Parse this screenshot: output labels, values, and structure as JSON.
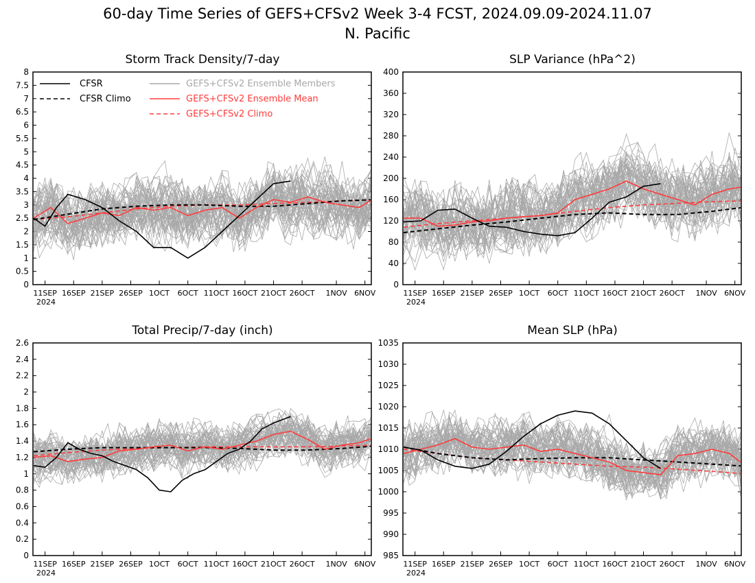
{
  "figure": {
    "title_line1": "60-day Time Series of GEFS+CFSv2 Week 3-4 FCST, 2024.09.09-2024.11.07",
    "title_line2": "N. Pacific",
    "date_ticks": [
      "11SEP",
      "16SEP",
      "21SEP",
      "26SEP",
      "1OCT",
      "6OCT",
      "11OCT",
      "16OCT",
      "21OCT",
      "26OCT",
      "1NOV",
      "6NOV"
    ],
    "year_label": "2024",
    "colors": {
      "cfsr": "#000000",
      "ensemble_members": "#a8a8a8",
      "ensemble_mean": "#ff3b3b",
      "gefs_climo": "#ff3b3b",
      "axes": "#000000"
    },
    "legend": {
      "cfsr": "CFSR",
      "cfsr_climo": "CFSR Climo",
      "members": "GEFS+CFSv2 Ensemble Members",
      "mean": "GEFS+CFSv2 Ensemble Mean",
      "gefs_climo": "GEFS+CFSv2 Climo"
    }
  },
  "chart_data": [
    {
      "type": "line",
      "title": "Storm Track Density/7-day",
      "x_dates": [
        "2024-09-09",
        "2024-11-07"
      ],
      "ylim": [
        0,
        8
      ],
      "y_ticks": [
        "0",
        "0.5",
        "1",
        "1.5",
        "2",
        "2.5",
        "3",
        "3.5",
        "4",
        "4.5",
        "5",
        "5.5",
        "6",
        "6.5",
        "7",
        "7.5",
        "8"
      ],
      "ensemble_spread": {
        "lower": 0.9,
        "upper": 4.3
      },
      "series": [
        {
          "name": "CFSR",
          "days": [
            0,
            2,
            4,
            6,
            9,
            12,
            15,
            18,
            21,
            24,
            27,
            30,
            33,
            36,
            39,
            42,
            45
          ],
          "values": [
            2.5,
            2.2,
            2.9,
            3.4,
            3.2,
            2.9,
            2.4,
            2.0,
            1.4,
            1.4,
            1.0,
            1.4,
            2.0,
            2.6,
            3.2,
            3.8,
            3.9
          ]
        },
        {
          "name": "CFSR Climo",
          "days": [
            0,
            6,
            12,
            18,
            24,
            30,
            36,
            42,
            48,
            54,
            60
          ],
          "values": [
            2.45,
            2.65,
            2.85,
            2.95,
            3.0,
            3.0,
            2.95,
            2.95,
            3.05,
            3.15,
            3.2
          ]
        },
        {
          "name": "GEFS+CFSv2 Ensemble Mean",
          "days": [
            0,
            3,
            6,
            9,
            12,
            15,
            18,
            21,
            24,
            27,
            30,
            33,
            36,
            39,
            42,
            45,
            48,
            51,
            54,
            57,
            60
          ],
          "values": [
            2.5,
            2.9,
            2.3,
            2.5,
            2.7,
            2.6,
            2.9,
            2.8,
            2.9,
            2.6,
            2.8,
            2.9,
            2.5,
            2.9,
            3.2,
            3.1,
            3.3,
            3.1,
            3.0,
            2.9,
            3.3
          ]
        },
        {
          "name": "GEFS+CFSv2 Climo",
          "days": [
            0,
            6,
            12,
            18,
            24,
            30,
            36,
            42,
            48,
            54,
            60
          ],
          "values": [
            2.45,
            2.55,
            2.7,
            2.85,
            2.95,
            3.0,
            3.0,
            3.05,
            3.1,
            3.15,
            3.2
          ]
        }
      ]
    },
    {
      "type": "line",
      "title": "SLP Variance (hPa^2)",
      "x_dates": [
        "2024-09-09",
        "2024-11-07"
      ],
      "ylim": [
        0,
        400
      ],
      "y_ticks": [
        "0",
        "40",
        "80",
        "120",
        "160",
        "200",
        "240",
        "280",
        "320",
        "360",
        "400"
      ],
      "ensemble_spread": {
        "lower": 70,
        "upper": 250
      },
      "series": [
        {
          "name": "CFSR",
          "days": [
            0,
            3,
            6,
            9,
            12,
            15,
            18,
            21,
            24,
            27,
            30,
            33,
            36,
            39,
            42,
            45
          ],
          "values": [
            118,
            120,
            140,
            142,
            125,
            110,
            108,
            100,
            95,
            92,
            98,
            125,
            155,
            165,
            185,
            190
          ]
        },
        {
          "name": "CFSR Climo",
          "days": [
            0,
            6,
            12,
            18,
            24,
            30,
            36,
            42,
            48,
            54,
            60
          ],
          "values": [
            98,
            105,
            112,
            118,
            125,
            132,
            135,
            132,
            132,
            138,
            146
          ]
        },
        {
          "name": "GEFS+CFSv2 Ensemble Mean",
          "days": [
            0,
            3,
            6,
            9,
            12,
            15,
            18,
            21,
            24,
            27,
            30,
            33,
            36,
            39,
            42,
            45,
            48,
            51,
            54,
            57,
            60
          ],
          "values": [
            125,
            125,
            110,
            112,
            118,
            120,
            125,
            128,
            130,
            135,
            160,
            170,
            180,
            195,
            180,
            170,
            160,
            150,
            170,
            180,
            185
          ]
        },
        {
          "name": "GEFS+CFSv2 Climo",
          "days": [
            0,
            6,
            12,
            18,
            24,
            30,
            36,
            42,
            48,
            54,
            60
          ],
          "values": [
            108,
            115,
            120,
            125,
            130,
            138,
            145,
            150,
            153,
            156,
            158
          ]
        }
      ]
    },
    {
      "type": "line",
      "title": "Total Precip/7-day (inch)",
      "x_dates": [
        "2024-09-09",
        "2024-11-07"
      ],
      "ylim": [
        0,
        2.6
      ],
      "y_ticks": [
        "0",
        "0.2",
        "0.4",
        "0.6",
        "0.8",
        "1",
        "1.2",
        "1.4",
        "1.6",
        "1.8",
        "2",
        "2.2",
        "2.4",
        "2.6"
      ],
      "ensemble_spread": {
        "lower": 0.95,
        "upper": 1.7
      },
      "series": [
        {
          "name": "CFSR",
          "days": [
            0,
            2,
            4,
            6,
            8,
            10,
            12,
            14,
            16,
            18,
            20,
            22,
            24,
            26,
            28,
            30,
            32,
            34,
            36,
            38,
            40,
            42,
            45
          ],
          "values": [
            1.1,
            1.08,
            1.2,
            1.38,
            1.3,
            1.25,
            1.22,
            1.15,
            1.1,
            1.05,
            0.95,
            0.8,
            0.78,
            0.92,
            1.0,
            1.05,
            1.15,
            1.25,
            1.3,
            1.4,
            1.55,
            1.62,
            1.7
          ]
        },
        {
          "name": "CFSR Climo",
          "days": [
            0,
            6,
            12,
            18,
            24,
            30,
            36,
            42,
            48,
            54,
            60
          ],
          "values": [
            1.27,
            1.3,
            1.32,
            1.32,
            1.32,
            1.32,
            1.31,
            1.29,
            1.29,
            1.31,
            1.34
          ]
        },
        {
          "name": "GEFS+CFSv2 Ensemble Mean",
          "days": [
            0,
            3,
            6,
            9,
            12,
            15,
            18,
            21,
            24,
            27,
            30,
            33,
            36,
            39,
            42,
            45,
            48,
            51,
            54,
            57,
            60
          ],
          "values": [
            1.2,
            1.22,
            1.15,
            1.18,
            1.2,
            1.28,
            1.3,
            1.33,
            1.35,
            1.28,
            1.33,
            1.3,
            1.35,
            1.4,
            1.48,
            1.52,
            1.42,
            1.3,
            1.35,
            1.38,
            1.45
          ]
        },
        {
          "name": "GEFS+CFSv2 Climo",
          "days": [
            0,
            6,
            12,
            18,
            24,
            30,
            36,
            42,
            48,
            54,
            60
          ],
          "values": [
            1.22,
            1.26,
            1.29,
            1.31,
            1.32,
            1.33,
            1.33,
            1.33,
            1.33,
            1.34,
            1.35
          ]
        }
      ]
    },
    {
      "type": "line",
      "title": "Mean SLP (hPa)",
      "x_dates": [
        "2024-09-09",
        "2024-11-07"
      ],
      "ylim": [
        985,
        1035
      ],
      "y_ticks": [
        "985",
        "990",
        "995",
        "1000",
        "1005",
        "1010",
        "1015",
        "1020",
        "1025",
        "1030",
        "1035"
      ],
      "ensemble_spread": {
        "lower": 998,
        "upper": 1016
      },
      "series": [
        {
          "name": "CFSR",
          "days": [
            0,
            3,
            6,
            9,
            12,
            15,
            18,
            21,
            24,
            27,
            30,
            33,
            36,
            39,
            42,
            45
          ],
          "values": [
            1010.5,
            1009.8,
            1007.5,
            1006,
            1005.5,
            1006.5,
            1009.5,
            1013,
            1016,
            1018,
            1019,
            1018.5,
            1016,
            1012,
            1008,
            1005.5
          ]
        },
        {
          "name": "CFSR Climo",
          "days": [
            0,
            6,
            12,
            18,
            24,
            30,
            36,
            42,
            48,
            54,
            60
          ],
          "values": [
            1010.5,
            1009,
            1008,
            1007.5,
            1007.8,
            1008,
            1008,
            1007.5,
            1007,
            1006.5,
            1006
          ]
        },
        {
          "name": "GEFS+CFSv2 Ensemble Mean",
          "days": [
            0,
            3,
            6,
            9,
            12,
            15,
            18,
            21,
            24,
            27,
            30,
            33,
            36,
            39,
            42,
            45,
            48,
            51,
            54,
            57,
            60
          ],
          "values": [
            1009,
            1010,
            1011,
            1012.5,
            1010.5,
            1010,
            1010.5,
            1011,
            1009.5,
            1010,
            1009,
            1008,
            1007,
            1005,
            1004.5,
            1004,
            1008.5,
            1009,
            1010,
            1009,
            1006
          ]
        },
        {
          "name": "GEFS+CFSv2 Climo",
          "days": [
            0,
            6,
            12,
            18,
            24,
            30,
            36,
            42,
            48,
            54,
            60
          ],
          "values": [
            1010,
            1009,
            1008,
            1007.5,
            1007,
            1006.5,
            1006,
            1005.8,
            1005.3,
            1004.8,
            1004.2
          ]
        }
      ]
    }
  ]
}
